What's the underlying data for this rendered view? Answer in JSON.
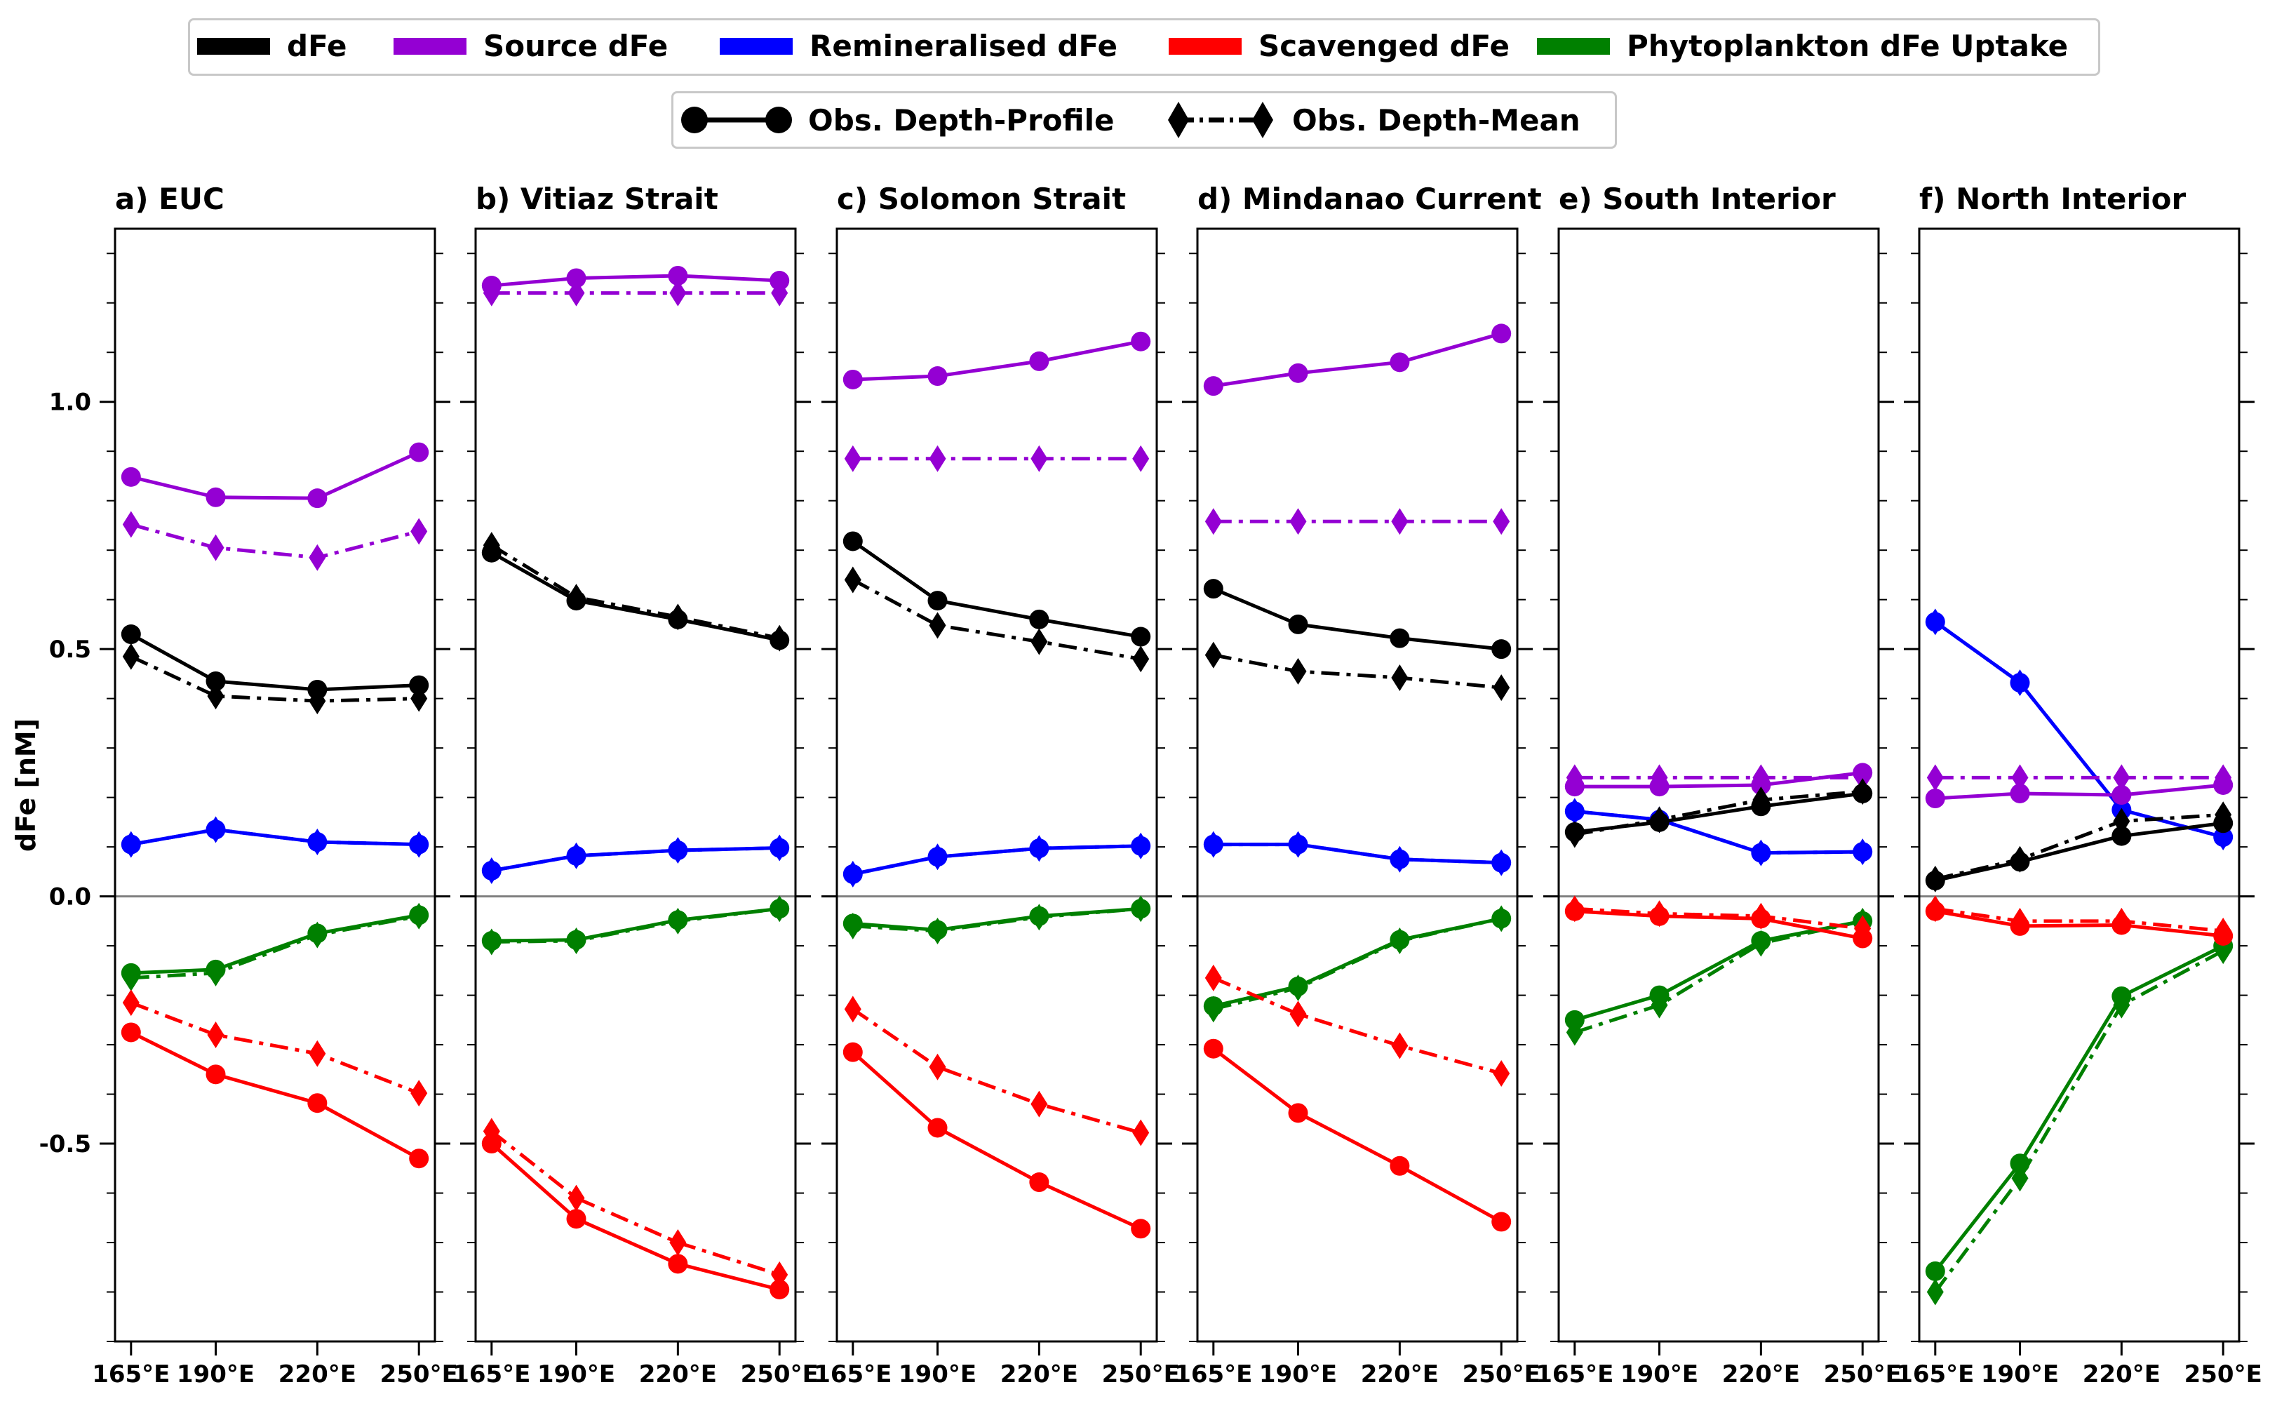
{
  "legend_series": [
    {
      "key": "dfe",
      "label": "dFe",
      "color": "#000000"
    },
    {
      "key": "source",
      "label": "Source dFe",
      "color": "#9400d3"
    },
    {
      "key": "remin",
      "label": "Remineralised dFe",
      "color": "#0000ff"
    },
    {
      "key": "scav",
      "label": "Scavenged dFe",
      "color": "#ff0000"
    },
    {
      "key": "phyto",
      "label": "Phytoplankton dFe Uptake",
      "color": "#008000"
    }
  ],
  "legend_obs": [
    {
      "key": "profile",
      "label": "Obs. Depth-Profile",
      "marker": "circle",
      "linestyle": "solid"
    },
    {
      "key": "mean",
      "label": "Obs. Depth-Mean",
      "marker": "diamond",
      "linestyle": "dashdot"
    }
  ],
  "chart_data": {
    "type": "line",
    "ylabel": "dFe [nM]",
    "ylim": [
      -0.9,
      1.35
    ],
    "yticks": [
      -0.5,
      0.0,
      0.5,
      1.0
    ],
    "ytick_labels": [
      "-0.5",
      "0.0",
      "0.5",
      "1.0"
    ],
    "x": [
      "165°E",
      "190°E",
      "220°E",
      "250°E"
    ],
    "x_values": [
      165,
      190,
      220,
      250
    ],
    "zero_line": true,
    "panels": [
      {
        "title": "a) EUC",
        "series": {
          "dfe": {
            "profile": [
              0.53,
              0.435,
              0.418,
              0.427
            ],
            "mean": [
              0.485,
              0.405,
              0.395,
              0.4
            ]
          },
          "source": {
            "profile": [
              0.848,
              0.807,
              0.805,
              0.898
            ],
            "mean": [
              0.752,
              0.705,
              0.685,
              0.738
            ]
          },
          "remin": {
            "profile": [
              0.105,
              0.135,
              0.11,
              0.105
            ],
            "mean": [
              0.105,
              0.135,
              0.11,
              0.105
            ]
          },
          "scav": {
            "profile": [
              -0.275,
              -0.36,
              -0.418,
              -0.53
            ],
            "mean": [
              -0.215,
              -0.28,
              -0.318,
              -0.398
            ]
          },
          "phyto": {
            "profile": [
              -0.155,
              -0.148,
              -0.075,
              -0.038
            ],
            "mean": [
              -0.165,
              -0.155,
              -0.078,
              -0.04
            ]
          }
        }
      },
      {
        "title": "b) Vitiaz Strait",
        "series": {
          "dfe": {
            "profile": [
              0.695,
              0.598,
              0.56,
              0.518
            ],
            "mean": [
              0.71,
              0.605,
              0.565,
              0.522
            ]
          },
          "source": {
            "profile": [
              1.235,
              1.25,
              1.255,
              1.245
            ],
            "mean": [
              1.22,
              1.22,
              1.22,
              1.22
            ]
          },
          "remin": {
            "profile": [
              0.052,
              0.082,
              0.093,
              0.098
            ],
            "mean": [
              0.052,
              0.082,
              0.093,
              0.098
            ]
          },
          "scav": {
            "profile": [
              -0.5,
              -0.652,
              -0.743,
              -0.795
            ],
            "mean": [
              -0.475,
              -0.61,
              -0.7,
              -0.765
            ]
          },
          "phyto": {
            "profile": [
              -0.09,
              -0.088,
              -0.048,
              -0.025
            ],
            "mean": [
              -0.092,
              -0.09,
              -0.05,
              -0.025
            ]
          }
        }
      },
      {
        "title": "c) Solomon Strait",
        "series": {
          "dfe": {
            "profile": [
              0.718,
              0.598,
              0.56,
              0.525
            ],
            "mean": [
              0.64,
              0.548,
              0.515,
              0.48
            ]
          },
          "source": {
            "profile": [
              1.045,
              1.052,
              1.082,
              1.122
            ],
            "mean": [
              0.885,
              0.885,
              0.885,
              0.885
            ]
          },
          "remin": {
            "profile": [
              0.045,
              0.08,
              0.097,
              0.102
            ],
            "mean": [
              0.045,
              0.08,
              0.097,
              0.102
            ]
          },
          "scav": {
            "profile": [
              -0.315,
              -0.468,
              -0.578,
              -0.672
            ],
            "mean": [
              -0.228,
              -0.345,
              -0.42,
              -0.478
            ]
          },
          "phyto": {
            "profile": [
              -0.055,
              -0.068,
              -0.04,
              -0.025
            ],
            "mean": [
              -0.06,
              -0.07,
              -0.042,
              -0.025
            ]
          }
        }
      },
      {
        "title": "d) Mindanao Current",
        "series": {
          "dfe": {
            "profile": [
              0.622,
              0.55,
              0.522,
              0.5
            ],
            "mean": [
              0.488,
              0.455,
              0.442,
              0.422
            ]
          },
          "source": {
            "profile": [
              1.032,
              1.058,
              1.08,
              1.138
            ],
            "mean": [
              0.758,
              0.758,
              0.758,
              0.758
            ]
          },
          "remin": {
            "profile": [
              0.105,
              0.105,
              0.075,
              0.068
            ],
            "mean": [
              0.105,
              0.105,
              0.075,
              0.068
            ]
          },
          "scav": {
            "profile": [
              -0.308,
              -0.438,
              -0.545,
              -0.658
            ],
            "mean": [
              -0.165,
              -0.238,
              -0.302,
              -0.358
            ]
          },
          "phyto": {
            "profile": [
              -0.222,
              -0.182,
              -0.088,
              -0.045
            ],
            "mean": [
              -0.228,
              -0.185,
              -0.09,
              -0.045
            ]
          }
        }
      },
      {
        "title": "e) South Interior",
        "series": {
          "dfe": {
            "profile": [
              0.13,
              0.15,
              0.182,
              0.208
            ],
            "mean": [
              0.125,
              0.155,
              0.195,
              0.212
            ]
          },
          "source": {
            "profile": [
              0.222,
              0.222,
              0.225,
              0.25
            ],
            "mean": [
              0.24,
              0.24,
              0.24,
              0.24
            ]
          },
          "remin": {
            "profile": [
              0.172,
              0.155,
              0.088,
              0.09
            ],
            "mean": [
              0.172,
              0.155,
              0.088,
              0.09
            ]
          },
          "scav": {
            "profile": [
              -0.03,
              -0.04,
              -0.045,
              -0.085
            ],
            "mean": [
              -0.025,
              -0.035,
              -0.04,
              -0.065
            ]
          },
          "phyto": {
            "profile": [
              -0.25,
              -0.2,
              -0.09,
              -0.05
            ],
            "mean": [
              -0.275,
              -0.22,
              -0.095,
              -0.05
            ]
          }
        }
      },
      {
        "title": "f) North Interior",
        "series": {
          "dfe": {
            "profile": [
              0.032,
              0.07,
              0.122,
              0.148
            ],
            "mean": [
              0.035,
              0.075,
              0.152,
              0.165
            ]
          },
          "source": {
            "profile": [
              0.198,
              0.208,
              0.205,
              0.225
            ],
            "mean": [
              0.24,
              0.24,
              0.24,
              0.24
            ]
          },
          "remin": {
            "profile": [
              0.555,
              0.432,
              0.175,
              0.12
            ],
            "mean": [
              0.555,
              0.432,
              0.175,
              0.12
            ]
          },
          "scav": {
            "profile": [
              -0.03,
              -0.06,
              -0.058,
              -0.08
            ],
            "mean": [
              -0.025,
              -0.05,
              -0.05,
              -0.07
            ]
          },
          "phyto": {
            "profile": [
              -0.758,
              -0.54,
              -0.202,
              -0.1
            ],
            "mean": [
              -0.8,
              -0.57,
              -0.22,
              -0.11
            ]
          }
        }
      }
    ]
  }
}
